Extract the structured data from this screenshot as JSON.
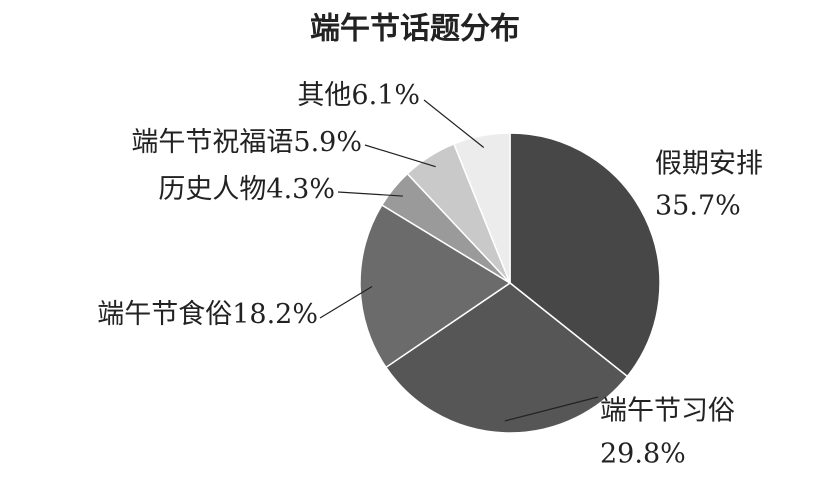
{
  "chart_data": {
    "type": "pie",
    "title": "端午节话题分布",
    "categories": [
      "假期安排",
      "端午节习俗",
      "端午节食俗",
      "历史人物",
      "端午节祝福语",
      "其他"
    ],
    "values": [
      35.7,
      29.8,
      18.2,
      4.3,
      5.9,
      6.1
    ],
    "value_labels": [
      "35.7%",
      "29.8%",
      "18.2%",
      "4.3%",
      "5.9%",
      "6.1%"
    ],
    "colors": [
      "#474747",
      "#565656",
      "#6b6b6b",
      "#9a9a9a",
      "#c9c9c9",
      "#ececec"
    ]
  }
}
